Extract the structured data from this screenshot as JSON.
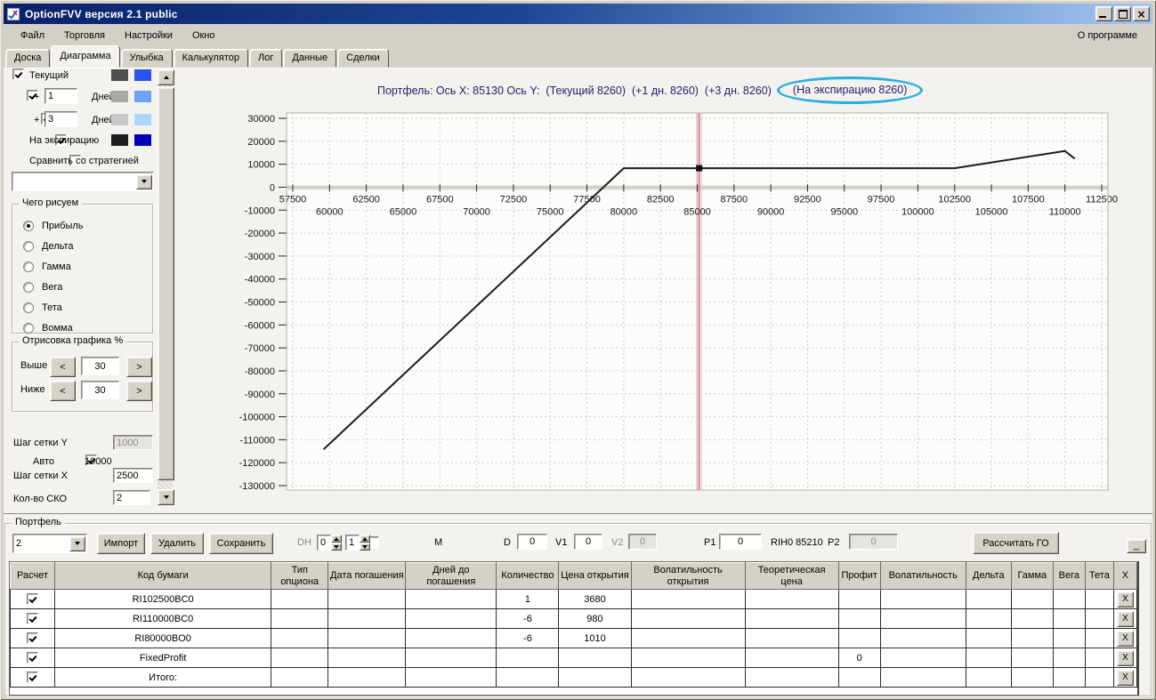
{
  "window": {
    "title": "OptionFVV версия 2.1 public"
  },
  "menu": {
    "items": [
      "Файл",
      "Торговля",
      "Настройки",
      "Окно"
    ],
    "right": "О программе"
  },
  "tabs": {
    "items": [
      "Доска",
      "Диаграмма",
      "Улыбка",
      "Калькулятор",
      "Лог",
      "Данные",
      "Сделки"
    ],
    "active_index": 1
  },
  "sidebar": {
    "series_toggles": [
      {
        "label": "Текущий",
        "checked": true,
        "swatches": [
          "#4f4f4f",
          "#2a52f0"
        ]
      },
      {
        "prefix": "+",
        "days_value": "1",
        "label": "Дней",
        "checked": true,
        "swatches": [
          "#a8a8a8",
          "#6ea2f8"
        ]
      },
      {
        "prefix": "+",
        "days_value": "3",
        "label": "Дней",
        "checked": true,
        "swatches": [
          "#c9c9c9",
          "#aad6fa"
        ]
      },
      {
        "label": "На экспирацию",
        "checked": true,
        "swatches": [
          "#1e1e1e",
          "#0000b8"
        ]
      }
    ],
    "compare_checkbox_label": "Сравнить со стратегией",
    "strategy_dropdown_value": "",
    "draw_group": {
      "title": "Чего рисуем",
      "options": [
        "Прибыль",
        "Дельта",
        "Гамма",
        "Вега",
        "Тета",
        "Вомма"
      ],
      "selected": "Прибыль"
    },
    "render_group": {
      "title": "Отрисовка графика %",
      "rows": [
        {
          "label": "Выше",
          "value": "30"
        },
        {
          "label": "Ниже",
          "value": "30"
        }
      ]
    },
    "grid_step_y_label": "Шаг сетки Y",
    "grid_step_y_value": "1000",
    "auto_label": "Авто",
    "auto_value": "10000",
    "grid_step_x_label": "Шаг сетки X",
    "grid_step_x_value": "2500",
    "sko_label": "Кол-во СКО",
    "sko_value": "2"
  },
  "chart": {
    "title_prefix": "Портфель: Ось X: 85130 Ось Y:  (Текущий 8260)  (+1 дн. 8260)  (+3 дн. 8260)",
    "title_circled": "(На экспирацию 8260)",
    "ellipse_color": "#2aaede"
  },
  "chart_data": {
    "type": "line",
    "title": "Портфель: Ось X: 85130 Ось Y: (Текущий 8260) (+1 дн. 8260) (+3 дн. 8260) (На экспирацию 8260)",
    "x_axis": {
      "min": 57500,
      "max": 112500,
      "grid_step": 2500,
      "tick_labels_row1": [
        57500,
        62500,
        67500,
        72500,
        77500,
        82500,
        87500,
        92500,
        97500,
        102500,
        107500,
        112500
      ],
      "tick_labels_row2": [
        60000,
        65000,
        70000,
        75000,
        80000,
        85000,
        90000,
        95000,
        100000,
        105000,
        110000
      ]
    },
    "y_axis": {
      "min": -130000,
      "max": 30000,
      "grid_step": 10000,
      "tick_labels": [
        30000,
        20000,
        10000,
        0,
        -10000,
        -20000,
        -30000,
        -40000,
        -50000,
        -60000,
        -70000,
        -80000,
        -90000,
        -100000,
        -110000,
        -120000,
        -130000
      ]
    },
    "series": [
      {
        "name": "На экспирацию (прибыль)",
        "color": "#1c1c1c",
        "points": [
          [
            59591,
            -114194
          ],
          [
            80000,
            8260
          ],
          [
            102500,
            8260
          ],
          [
            110000,
            15760
          ],
          [
            110669,
            12415
          ]
        ]
      }
    ],
    "marker": {
      "x": 85130,
      "y": 8260,
      "color": "#111111"
    },
    "cursor": {
      "x": 85130,
      "band_color": "#eeb8c4",
      "line_color": "#c25a70"
    },
    "grid": "dashed"
  },
  "portfolio": {
    "group_title": "Портфель",
    "profile_select_value": "2",
    "import_button": "Импорт",
    "delete_button": "Удалить",
    "save_button": "Сохранить",
    "dh_label": "DH",
    "dh_spin1": "0",
    "dh_spin2": "1",
    "m_label": "M",
    "d_label": "D",
    "d_value": "0",
    "v1_label": "V1",
    "v1_value": "0",
    "v2_label": "V2",
    "v2_value": "0",
    "p1_label": "P1",
    "p1_value": "0",
    "ticker_text": "RIH0 85210",
    "p2_label": "P2",
    "p2_value": "0",
    "calc_button": "Рассчитать ГО",
    "collapse_button": "_"
  },
  "table": {
    "columns": [
      "Расчет",
      "Код бумаги",
      "Тип опциона",
      "Дата погашения",
      "Дней до погашения",
      "Количество",
      "Цена открытия",
      "Волатильность открытия",
      "Теоретическая цена",
      "Профит",
      "Волатильность",
      "Дельта",
      "Гамма",
      "Вега",
      "Тета",
      "X"
    ],
    "rows": [
      {
        "checked": true,
        "selected": true,
        "code": "RI102500BC0",
        "qty": "1",
        "open_price": "3680",
        "profit": ""
      },
      {
        "checked": true,
        "selected": false,
        "code": "RI110000BC0",
        "qty": "-6",
        "open_price": "980",
        "profit": ""
      },
      {
        "checked": true,
        "selected": false,
        "code": "RI80000BO0",
        "qty": "-6",
        "open_price": "1010",
        "profit": ""
      },
      {
        "checked": true,
        "selected": false,
        "code": "FixedProfit",
        "qty": "",
        "open_price": "",
        "profit": "0"
      },
      {
        "checked": true,
        "selected": false,
        "code": "Итого:",
        "qty": "",
        "open_price": "",
        "profit": ""
      }
    ]
  }
}
